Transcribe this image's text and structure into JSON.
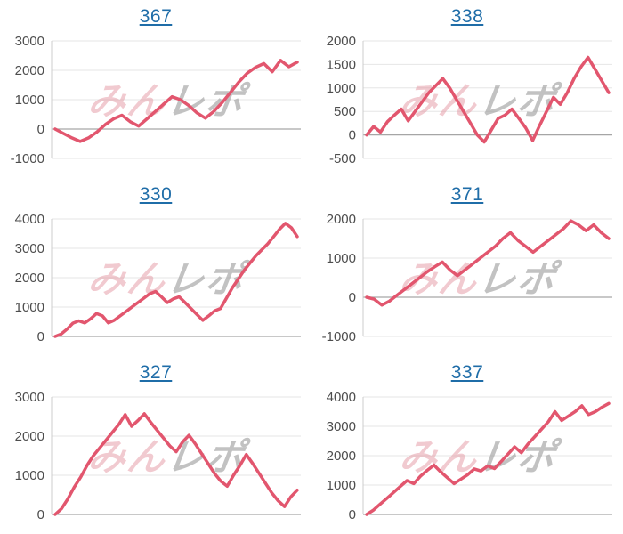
{
  "page": {
    "background": "#ffffff",
    "description_note": "grid of six daily slump graphs, each titled by machine number link"
  },
  "colors": {
    "line": "#e2566e",
    "title_link": "#1f6da8",
    "grid_line": "#e6e6e6",
    "zero_line": "#a6a6a6",
    "axis_line": "#cccccc",
    "tick_label": "#4d4d4d",
    "watermark_pink": "#e28c98",
    "watermark_gray": "#9b9b9b"
  },
  "watermark": {
    "text_pink": "みん",
    "text_gray": "レポ"
  },
  "chart_data": [
    {
      "type": "line",
      "title": "367",
      "xlabel": "",
      "ylabel": "",
      "ylim": [
        -1000,
        3000
      ],
      "yticks": [
        3000,
        2000,
        1000,
        0,
        -1000
      ],
      "grid": true,
      "legend": null,
      "values": [
        0,
        -150,
        -300,
        -420,
        -300,
        -100,
        150,
        350,
        470,
        250,
        100,
        350,
        600,
        850,
        1100,
        1000,
        800,
        550,
        370,
        600,
        900,
        1250,
        1600,
        1900,
        2100,
        2230,
        1950,
        2340,
        2120,
        2280
      ]
    },
    {
      "type": "line",
      "title": "338",
      "xlabel": "",
      "ylabel": "",
      "ylim": [
        -500,
        2000
      ],
      "yticks": [
        2000,
        1500,
        1000,
        500,
        0,
        -500
      ],
      "grid": true,
      "legend": null,
      "values": [
        0,
        180,
        60,
        280,
        420,
        550,
        300,
        500,
        700,
        900,
        1050,
        1200,
        1000,
        750,
        500,
        250,
        0,
        -150,
        100,
        350,
        420,
        550,
        350,
        150,
        -120,
        200,
        500,
        800,
        650,
        900,
        1200,
        1450,
        1650,
        1400,
        1150,
        900
      ]
    },
    {
      "type": "line",
      "title": "330",
      "xlabel": "",
      "ylabel": "",
      "ylim": [
        0,
        4000
      ],
      "yticks": [
        4000,
        3000,
        2000,
        1000,
        0
      ],
      "grid": true,
      "legend": null,
      "values": [
        0,
        80,
        250,
        450,
        530,
        460,
        600,
        780,
        700,
        460,
        550,
        700,
        850,
        1000,
        1150,
        1300,
        1450,
        1530,
        1350,
        1150,
        1280,
        1350,
        1150,
        950,
        750,
        550,
        700,
        870,
        950,
        1300,
        1650,
        1950,
        2250,
        2500,
        2750,
        2950,
        3150,
        3400,
        3650,
        3850,
        3700,
        3400
      ]
    },
    {
      "type": "line",
      "title": "371",
      "xlabel": "",
      "ylabel": "",
      "ylim": [
        -1000,
        2000
      ],
      "yticks": [
        2000,
        1000,
        0,
        -1000
      ],
      "grid": true,
      "legend": null,
      "values": [
        0,
        -50,
        -200,
        -100,
        50,
        200,
        350,
        500,
        650,
        780,
        900,
        700,
        550,
        700,
        850,
        1000,
        1150,
        1300,
        1500,
        1650,
        1450,
        1300,
        1150,
        1300,
        1450,
        1600,
        1750,
        1950,
        1850,
        1700,
        1850,
        1650,
        1500
      ]
    },
    {
      "type": "line",
      "title": "327",
      "xlabel": "",
      "ylabel": "",
      "ylim": [
        0,
        3000
      ],
      "yticks": [
        3000,
        2000,
        1000,
        0
      ],
      "grid": true,
      "legend": null,
      "values": [
        0,
        150,
        400,
        700,
        950,
        1250,
        1500,
        1700,
        1900,
        2100,
        2300,
        2550,
        2250,
        2400,
        2570,
        2350,
        2150,
        1950,
        1750,
        1600,
        1850,
        2020,
        1800,
        1550,
        1300,
        1050,
        850,
        720,
        1000,
        1250,
        1530,
        1300,
        1050,
        800,
        550,
        350,
        200,
        450,
        620
      ]
    },
    {
      "type": "line",
      "title": "337",
      "xlabel": "",
      "ylabel": "",
      "ylim": [
        0,
        4000
      ],
      "yticks": [
        4000,
        3000,
        2000,
        1000,
        0
      ],
      "grid": true,
      "legend": null,
      "values": [
        0,
        150,
        350,
        550,
        750,
        950,
        1150,
        1050,
        1300,
        1500,
        1680,
        1450,
        1250,
        1050,
        1200,
        1350,
        1550,
        1480,
        1650,
        1560,
        1800,
        2050,
        2300,
        2100,
        2400,
        2650,
        2900,
        3150,
        3500,
        3200,
        3350,
        3500,
        3700,
        3400,
        3500,
        3650,
        3780
      ]
    }
  ]
}
